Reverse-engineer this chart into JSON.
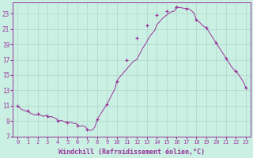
{
  "title": "",
  "xlabel": "Windchill (Refroidissement éolien,°C)",
  "ylabel": "",
  "bg_color": "#caf0e4",
  "grid_color": "#b0d4c8",
  "line_color": "#993399",
  "marker_color": "#993399",
  "xlim": [
    -0.5,
    23.5
  ],
  "ylim": [
    7,
    24.5
  ],
  "yticks": [
    7,
    9,
    11,
    13,
    15,
    17,
    19,
    21,
    23
  ],
  "xticks": [
    0,
    1,
    2,
    3,
    4,
    5,
    6,
    7,
    8,
    9,
    10,
    11,
    12,
    13,
    14,
    15,
    16,
    17,
    18,
    19,
    20,
    21,
    22,
    23
  ],
  "marker_hours": [
    0,
    1,
    2,
    3,
    4,
    5,
    6,
    7,
    8,
    9,
    10,
    11,
    12,
    13,
    14,
    15,
    16,
    17,
    18,
    19,
    20,
    21,
    22,
    23
  ],
  "marker_values": [
    11.0,
    10.3,
    9.9,
    9.6,
    9.0,
    8.8,
    8.4,
    7.9,
    9.2,
    11.2,
    14.2,
    17.0,
    19.8,
    21.5,
    22.8,
    23.3,
    23.9,
    23.7,
    22.2,
    21.2,
    19.2,
    17.2,
    15.5,
    13.3
  ],
  "dense_x": [
    0.0,
    0.1,
    0.2,
    0.3,
    0.4,
    0.5,
    0.6,
    0.7,
    0.8,
    0.9,
    1.0,
    1.1,
    1.2,
    1.3,
    1.4,
    1.5,
    1.6,
    1.7,
    1.8,
    1.9,
    2.0,
    2.1,
    2.2,
    2.3,
    2.4,
    2.5,
    2.6,
    2.7,
    2.8,
    2.9,
    3.0,
    3.1,
    3.2,
    3.3,
    3.4,
    3.5,
    3.6,
    3.7,
    3.8,
    3.9,
    4.0,
    4.1,
    4.2,
    4.3,
    4.4,
    4.5,
    4.6,
    4.7,
    4.8,
    4.9,
    5.0,
    5.1,
    5.2,
    5.3,
    5.4,
    5.5,
    5.6,
    5.7,
    5.8,
    5.9,
    6.0,
    6.1,
    6.2,
    6.3,
    6.4,
    6.5,
    6.6,
    6.7,
    6.8,
    6.9,
    7.0,
    7.1,
    7.2,
    7.3,
    7.4,
    7.5,
    7.6,
    7.7,
    7.8,
    7.9,
    8.0,
    8.2,
    8.4,
    8.6,
    8.8,
    9.0,
    9.2,
    9.4,
    9.6,
    9.8,
    10.0,
    10.2,
    10.4,
    10.6,
    10.8,
    11.0,
    11.2,
    11.4,
    11.6,
    11.8,
    12.0,
    12.2,
    12.4,
    12.6,
    12.8,
    13.0,
    13.2,
    13.4,
    13.6,
    13.8,
    14.0,
    14.2,
    14.4,
    14.6,
    14.8,
    15.0,
    15.2,
    15.4,
    15.6,
    15.8,
    16.0,
    16.2,
    16.4,
    16.6,
    16.8,
    17.0,
    17.2,
    17.4,
    17.6,
    17.8,
    18.0,
    18.2,
    18.4,
    18.6,
    18.8,
    19.0,
    19.2,
    19.4,
    19.6,
    19.8,
    20.0,
    20.2,
    20.4,
    20.6,
    20.8,
    21.0,
    21.2,
    21.4,
    21.6,
    21.8,
    22.0,
    22.2,
    22.4,
    22.6,
    22.8,
    23.0
  ],
  "dense_y": [
    11.0,
    10.85,
    10.7,
    10.6,
    10.5,
    10.45,
    10.4,
    10.35,
    10.3,
    10.25,
    10.3,
    10.2,
    10.1,
    10.0,
    9.95,
    9.9,
    9.85,
    9.8,
    9.75,
    9.8,
    9.9,
    9.85,
    9.8,
    9.75,
    9.7,
    9.65,
    9.6,
    9.65,
    9.7,
    9.75,
    9.6,
    9.55,
    9.5,
    9.55,
    9.6,
    9.5,
    9.45,
    9.4,
    9.35,
    9.3,
    9.1,
    9.05,
    9.0,
    9.05,
    9.1,
    9.0,
    8.95,
    8.9,
    8.85,
    8.9,
    8.8,
    8.75,
    8.8,
    8.85,
    8.8,
    8.75,
    8.7,
    8.65,
    8.7,
    8.65,
    8.5,
    8.4,
    8.35,
    8.3,
    8.35,
    8.4,
    8.35,
    8.3,
    8.25,
    8.1,
    7.9,
    7.85,
    7.8,
    7.75,
    7.8,
    7.85,
    7.9,
    8.1,
    8.3,
    8.7,
    9.2,
    9.6,
    10.0,
    10.4,
    10.8,
    11.2,
    11.7,
    12.2,
    12.7,
    13.2,
    14.2,
    14.6,
    14.9,
    15.2,
    15.5,
    15.8,
    16.1,
    16.4,
    16.7,
    16.9,
    17.0,
    17.5,
    18.0,
    18.5,
    18.9,
    19.3,
    19.8,
    20.2,
    20.5,
    20.8,
    21.5,
    21.8,
    22.1,
    22.4,
    22.6,
    22.8,
    23.0,
    23.2,
    23.3,
    23.35,
    23.9,
    23.85,
    23.8,
    23.75,
    23.7,
    23.7,
    23.65,
    23.5,
    23.3,
    23.0,
    22.2,
    22.0,
    21.8,
    21.5,
    21.3,
    21.2,
    20.8,
    20.4,
    20.0,
    19.6,
    19.2,
    18.8,
    18.4,
    18.0,
    17.6,
    17.2,
    16.8,
    16.4,
    16.0,
    15.7,
    15.5,
    15.2,
    14.8,
    14.4,
    14.0,
    13.3
  ]
}
